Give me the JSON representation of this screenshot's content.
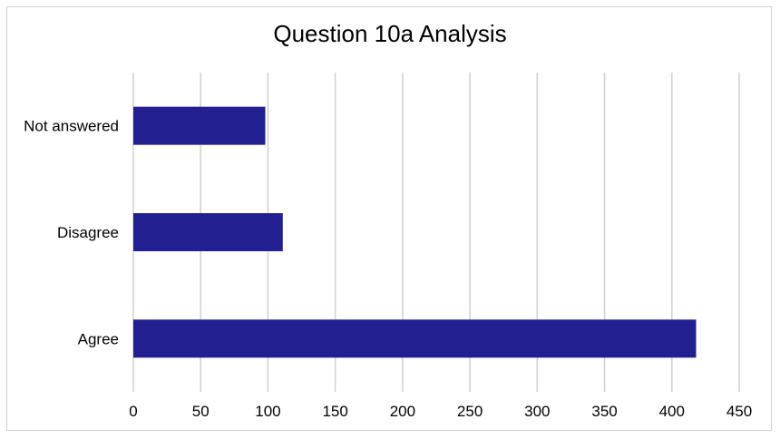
{
  "chart_data": {
    "type": "bar",
    "orientation": "horizontal",
    "title": "Question 10a Analysis",
    "categories": [
      "Not answered",
      "Disagree",
      "Agree"
    ],
    "values": [
      98,
      111,
      418
    ],
    "xlim": [
      0,
      450
    ],
    "xticks": [
      0,
      50,
      100,
      150,
      200,
      250,
      300,
      350,
      400,
      450
    ],
    "grid": true,
    "legend": "none",
    "bar_color": "#221f91",
    "grid_color": "#d0d0d0"
  }
}
